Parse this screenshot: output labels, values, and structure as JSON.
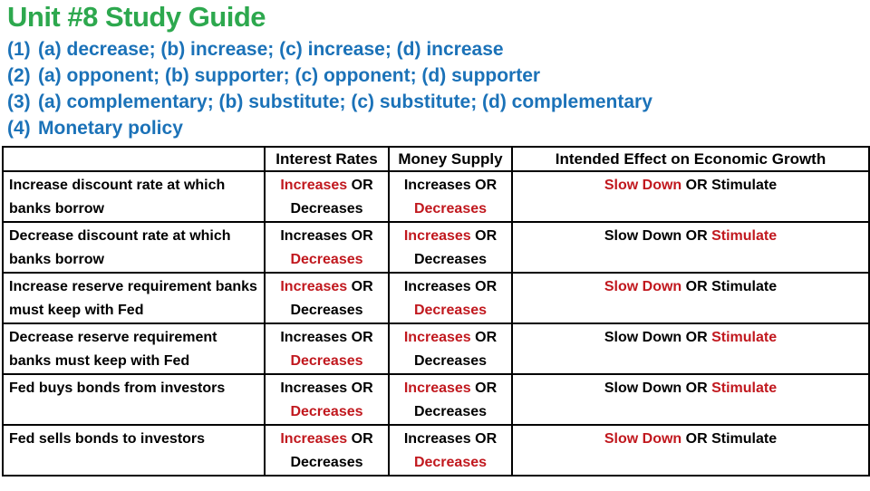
{
  "slide": {
    "title": "Unit #8 Study Guide"
  },
  "answers": [
    {
      "num": "(1)",
      "text": "(a) decrease; (b) increase; (c) increase; (d) increase"
    },
    {
      "num": "(2)",
      "text": "(a) opponent; (b) supporter; (c) opponent; (d) supporter"
    },
    {
      "num": "(3)",
      "text": "(a) complementary; (b) substitute; (c) substitute; (d) complementary"
    },
    {
      "num": "(4)",
      "text": "Monetary policy"
    }
  ],
  "table": {
    "headers": {
      "action": "",
      "interest_rates": "Interest Rates",
      "money_supply": "Money Supply",
      "effect": "Intended Effect on Economic Growth"
    },
    "labels": {
      "increases": "Increases",
      "decreases": "Decreases",
      "or": "OR",
      "slow_down": "Slow Down",
      "stimulate": "Stimulate"
    },
    "rows": [
      {
        "action": "Increase discount rate at which banks borrow",
        "interest_rates_red": "increases",
        "money_supply_red": "decreases",
        "effect_red": "slow_down"
      },
      {
        "action": "Decrease discount rate at which banks borrow",
        "interest_rates_red": "decreases",
        "money_supply_red": "increases",
        "effect_red": "stimulate"
      },
      {
        "action": "Increase reserve requirement banks must keep with Fed",
        "interest_rates_red": "increases",
        "money_supply_red": "decreases",
        "effect_red": "slow_down"
      },
      {
        "action": "Decrease reserve requirement banks must keep with Fed",
        "interest_rates_red": "decreases",
        "money_supply_red": "increases",
        "effect_red": "stimulate"
      },
      {
        "action": "Fed buys bonds from investors",
        "interest_rates_red": "decreases",
        "money_supply_red": "increases",
        "effect_red": "stimulate"
      },
      {
        "action": "Fed sells bonds to investors",
        "interest_rates_red": "increases",
        "money_supply_red": "decreases",
        "effect_red": "slow_down"
      }
    ]
  },
  "colors": {
    "title_green": "#2da84e",
    "answer_blue": "#1b72b8",
    "highlight_red": "#c1181e",
    "text_black": "#000000"
  }
}
